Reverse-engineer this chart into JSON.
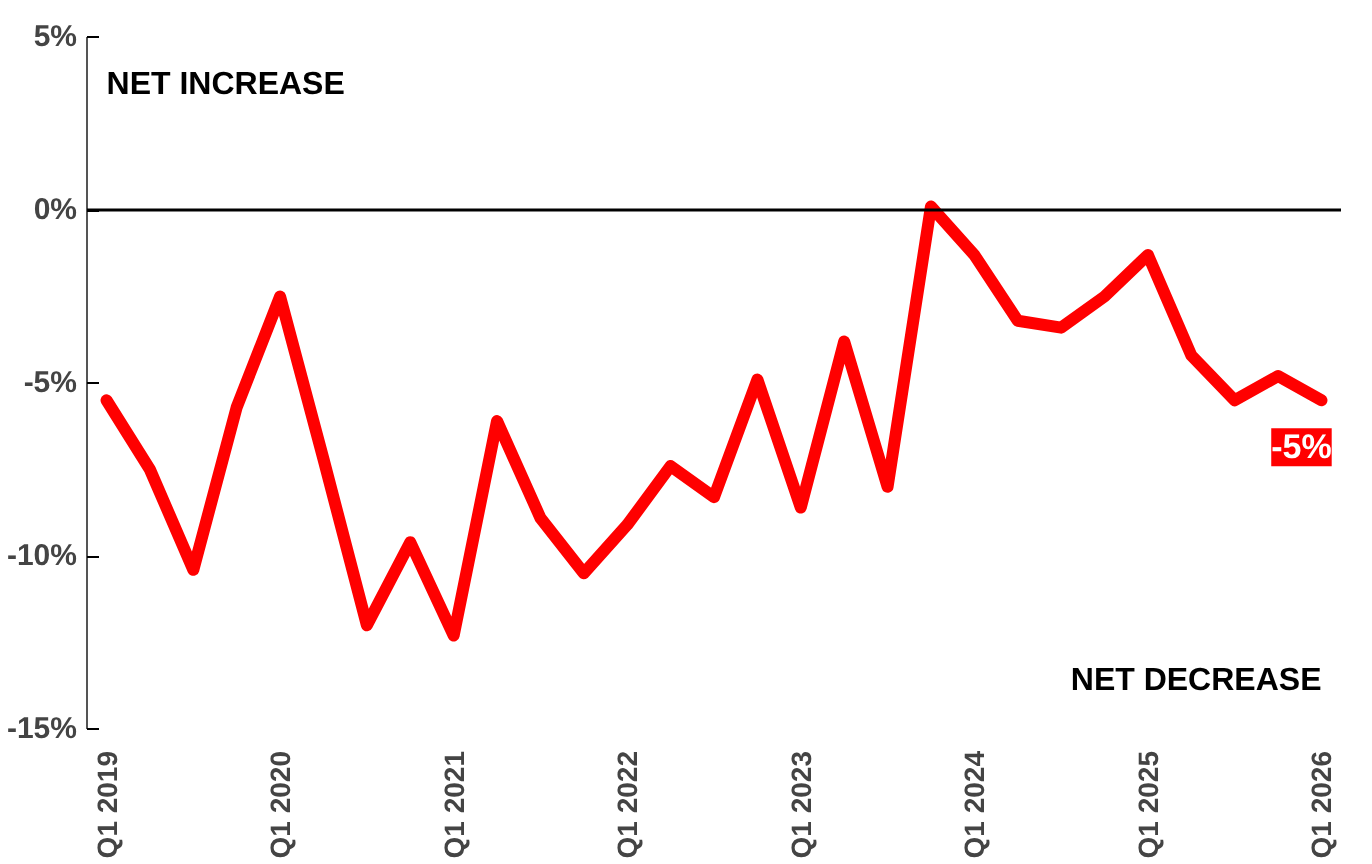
{
  "chart_data": {
    "type": "line",
    "categories": [
      "Q1 2019",
      null,
      null,
      null,
      "Q1 2020",
      null,
      null,
      null,
      "Q1 2021",
      null,
      null,
      null,
      "Q1 2022",
      null,
      null,
      null,
      "Q1 2023",
      null,
      null,
      null,
      "Q1 2024",
      null,
      null,
      null,
      "Q1 2025",
      null,
      null,
      null,
      "Q1 2026"
    ],
    "series": [
      {
        "color": "#ff0000",
        "values": [
          -5.5,
          -7.5,
          -10.4,
          -5.7,
          -2.5,
          -7.2,
          -12.0,
          -9.6,
          -12.3,
          -6.1,
          -8.9,
          -10.5,
          -9.1,
          -7.4,
          -8.3,
          -4.9,
          -8.6,
          -3.8,
          -8.0,
          0.1,
          -1.3,
          -3.2,
          -3.4,
          -2.5,
          -1.3,
          -4.2,
          -5.5,
          -4.8,
          -5.5
        ],
        "value_labels": [
          null,
          null,
          null,
          null,
          null,
          null,
          null,
          null,
          null,
          null,
          null,
          null,
          null,
          null,
          null,
          null,
          null,
          null,
          null,
          null,
          null,
          null,
          null,
          null,
          null,
          null,
          null,
          null,
          "-5%"
        ]
      }
    ],
    "ylim": [
      -15,
      5
    ],
    "yticks": [
      {
        "value": 5,
        "label": "5%"
      },
      {
        "value": 0,
        "label": "0%"
      },
      {
        "value": -5,
        "label": "-5%"
      },
      {
        "value": -10,
        "label": "-10%"
      },
      {
        "value": -15,
        "label": "-15%"
      }
    ],
    "ref_lines": [
      {
        "axis": "y",
        "value": 0,
        "color": "#000000"
      }
    ],
    "annotations": [
      "NET INCREASE",
      "NET DECREASE"
    ],
    "grid": false,
    "marker": "none",
    "line_style": "solid"
  }
}
